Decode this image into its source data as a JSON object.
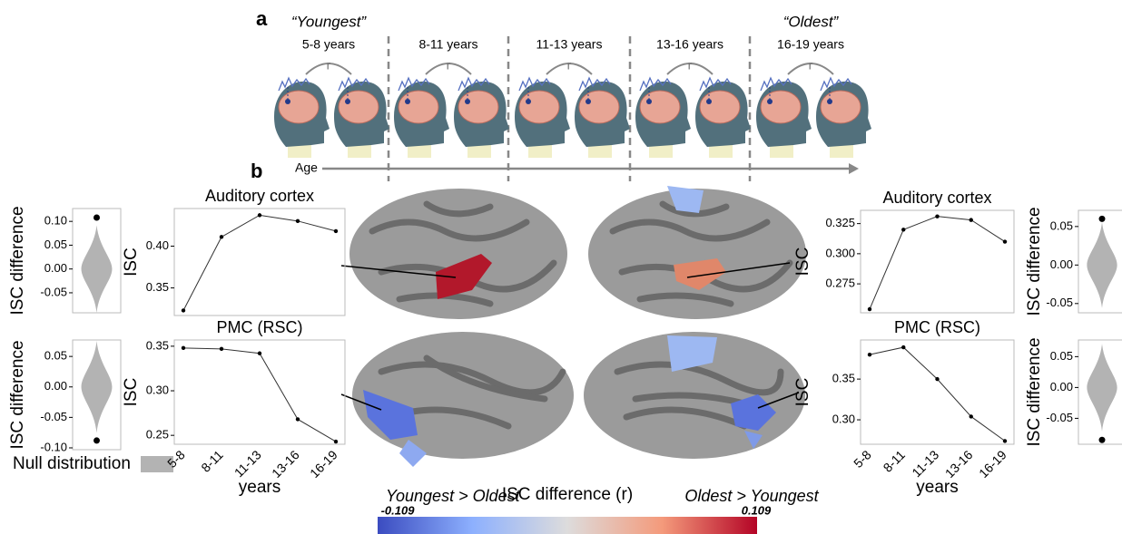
{
  "panel_a": {
    "label": "a",
    "groups": [
      {
        "tag": "“Youngest”",
        "range": "5-8 years"
      },
      {
        "range": "8-11 years"
      },
      {
        "range": "11-13 years"
      },
      {
        "range": "13-16 years"
      },
      {
        "tag": "“Oldest”",
        "range": "16-19 years"
      }
    ],
    "correlation": "r",
    "axis": "Age"
  },
  "panel_b_label": "b",
  "legend": {
    "label": "Null distribution",
    "color": "#b3b3b3"
  },
  "colorbar": {
    "left_label": "Youngest > Oldest",
    "title": "ISC difference (r)",
    "right_label": "Oldest > Youngest",
    "min": -0.109,
    "max": 0.109
  },
  "chart_data": [
    {
      "type": "violin",
      "ylabel": "ISC difference",
      "point": 0.108,
      "ylim": [
        -0.092,
        0.127
      ],
      "yticks": [
        {
          "value": 0.1,
          "label": "0.10"
        },
        0.05,
        {
          "value": 0,
          "label": "0.00"
        },
        -0.05
      ]
    },
    {
      "type": "line",
      "title": "Auditory cortex",
      "ylabel": "ISC",
      "categories": [
        null,
        null,
        null,
        null,
        null
      ],
      "values": [
        0.323,
        0.411,
        0.437,
        0.43,
        0.418
      ],
      "ylim": [
        0.317,
        0.445
      ],
      "yticks": [
        0.35,
        {
          "value": 0.4,
          "label": "0.40"
        }
      ]
    },
    {
      "type": "line",
      "title": "Auditory cortex",
      "ylabel": "ISC",
      "categories": [
        null,
        null,
        null,
        null,
        null
      ],
      "values": [
        0.254,
        0.32,
        0.331,
        0.328,
        0.31
      ],
      "ylim": [
        0.251,
        0.336
      ],
      "yticks": [
        0.275,
        {
          "value": 0.3,
          "label": "0.300"
        },
        0.325
      ]
    },
    {
      "type": "violin",
      "ylabel": "ISC difference",
      "point": 0.06,
      "ylim": [
        -0.062,
        0.071
      ],
      "yticks": [
        0.05,
        {
          "value": 0,
          "label": "0.00"
        },
        -0.05
      ]
    },
    {
      "type": "violin",
      "ylabel": "ISC difference",
      "point": -0.088,
      "ylim": [
        -0.103,
        0.077
      ],
      "yticks": [
        0.05,
        {
          "value": 0,
          "label": "0.00"
        },
        -0.05,
        {
          "value": -0.1,
          "label": "-0.10"
        }
      ]
    },
    {
      "type": "line",
      "title": "PMC (RSC)",
      "ylabel": "ISC",
      "xlabel": "years",
      "categories": [
        "5-8",
        "8-11",
        "11-13",
        "13-16",
        "16-19"
      ],
      "values": [
        0.348,
        0.347,
        0.342,
        0.268,
        0.243
      ],
      "ylim": [
        0.24,
        0.357
      ],
      "yticks": [
        0.25,
        {
          "value": 0.3,
          "label": "0.30"
        },
        0.35
      ]
    },
    {
      "type": "line",
      "title": "PMC (RSC)",
      "ylabel": "ISC",
      "xlabel": "years",
      "categories": [
        "5-8",
        "8-11",
        "11-13",
        "13-16",
        "16-19"
      ],
      "values": [
        0.38,
        0.389,
        0.35,
        0.304,
        0.274
      ],
      "ylim": [
        0.27,
        0.398
      ],
      "yticks": [
        {
          "value": 0.3,
          "label": "0.30"
        },
        0.35
      ]
    },
    {
      "type": "violin",
      "ylabel": "ISC difference",
      "point": -0.085,
      "ylim": [
        -0.092,
        0.077
      ],
      "yticks": [
        0.05,
        {
          "value": 0,
          "label": "0.00"
        },
        -0.05
      ]
    }
  ]
}
